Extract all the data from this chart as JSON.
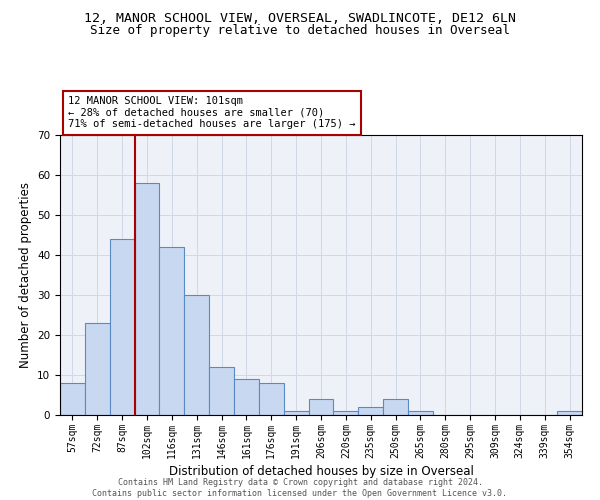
{
  "title_line1": "12, MANOR SCHOOL VIEW, OVERSEAL, SWADLINCOTE, DE12 6LN",
  "title_line2": "Size of property relative to detached houses in Overseal",
  "xlabel": "Distribution of detached houses by size in Overseal",
  "ylabel": "Number of detached properties",
  "bar_labels": [
    "57sqm",
    "72sqm",
    "87sqm",
    "102sqm",
    "116sqm",
    "131sqm",
    "146sqm",
    "161sqm",
    "176sqm",
    "191sqm",
    "206sqm",
    "220sqm",
    "235sqm",
    "250sqm",
    "265sqm",
    "280sqm",
    "295sqm",
    "309sqm",
    "324sqm",
    "339sqm",
    "354sqm"
  ],
  "bar_heights": [
    8,
    23,
    44,
    58,
    42,
    30,
    12,
    9,
    8,
    1,
    4,
    1,
    2,
    4,
    1,
    0,
    0,
    0,
    0,
    0,
    1
  ],
  "bar_color": "#c8d8f0",
  "bar_edge_color": "#5a8ac6",
  "grid_color": "#d0d8e8",
  "background_color": "#eef2f8",
  "vline_color": "#aa0000",
  "vline_x": 2.5,
  "annotation_text": "12 MANOR SCHOOL VIEW: 101sqm\n← 28% of detached houses are smaller (70)\n71% of semi-detached houses are larger (175) →",
  "annotation_box_color": "white",
  "annotation_box_edge": "#aa0000",
  "ylim": [
    0,
    70
  ],
  "yticks": [
    0,
    10,
    20,
    30,
    40,
    50,
    60,
    70
  ],
  "footer_text": "Contains HM Land Registry data © Crown copyright and database right 2024.\nContains public sector information licensed under the Open Government Licence v3.0.",
  "title_fontsize": 9.5,
  "subtitle_fontsize": 9,
  "tick_fontsize": 7,
  "ylabel_fontsize": 8.5,
  "xlabel_fontsize": 8.5,
  "annotation_fontsize": 7.5,
  "footer_fontsize": 6
}
